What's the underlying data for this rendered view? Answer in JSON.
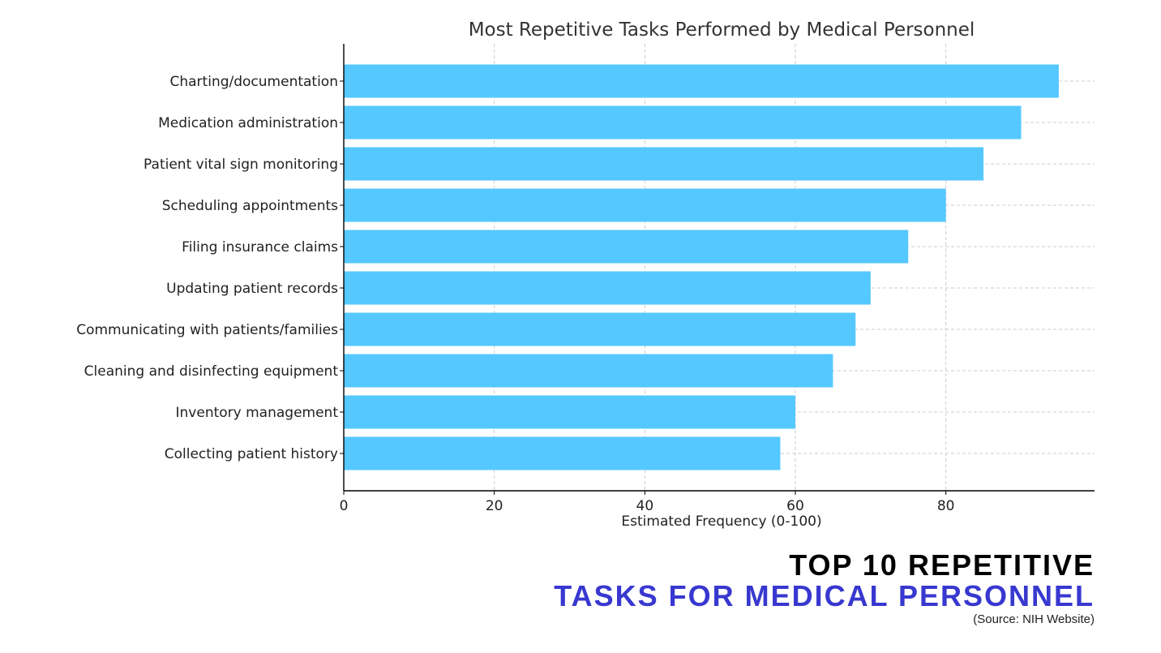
{
  "chart_data": {
    "type": "bar",
    "orientation": "horizontal",
    "title": "Most Repetitive Tasks Performed by Medical Personnel",
    "xlabel": "Estimated Frequency (0-100)",
    "ylabel": "",
    "categories": [
      "Charting/documentation",
      "Medication administration",
      "Patient vital sign monitoring",
      "Scheduling appointments",
      "Filing insurance claims",
      "Updating patient records",
      "Communicating with patients/families",
      "Cleaning and disinfecting equipment",
      "Inventory management",
      "Collecting patient history"
    ],
    "values": [
      95,
      90,
      85,
      80,
      75,
      70,
      68,
      65,
      60,
      58
    ],
    "xlim": [
      0,
      99.75
    ],
    "xticks": [
      0,
      20,
      40,
      60,
      80
    ],
    "xtick_labels": [
      "0",
      "20",
      "40",
      "60",
      "80"
    ],
    "grid": true,
    "bar_color": "#54c8ff"
  },
  "headline": {
    "line1": "TOP 10 REPETITIVE",
    "line2": "TASKS FOR MEDICAL PERSONNEL",
    "source": "(Source: NIH Website)"
  },
  "colors": {
    "headline_line1": "#000000",
    "headline_line2": "#3838d0"
  }
}
